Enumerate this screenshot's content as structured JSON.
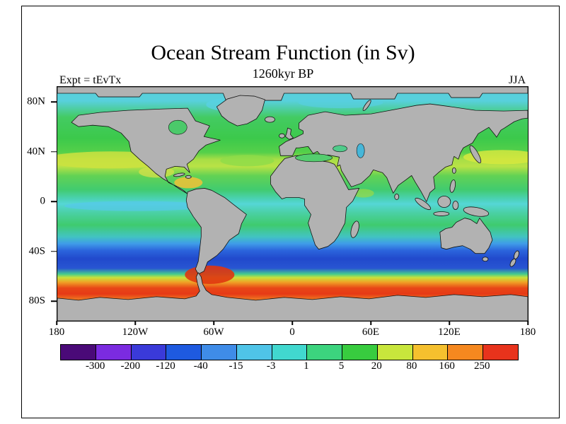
{
  "header": {
    "title": "Ocean Stream Function (in Sv)",
    "subtitle": "1260kyr BP",
    "left_annotation": "Expt = tEvTx",
    "right_annotation": "JJA"
  },
  "chart_data": {
    "type": "heatmap",
    "title": "Ocean Stream Function (in Sv)",
    "subtitle": "1260kyr BP",
    "experiment_label": "Expt = tEvTx",
    "season_label": "JJA",
    "units": "Sv",
    "projection": "global cylindrical lat-lon map, land masked gray",
    "x_ticks": [
      "180",
      "120W",
      "60W",
      "0",
      "60E",
      "120E",
      "180"
    ],
    "y_ticks": [
      "80N",
      "40N",
      "0",
      "40S",
      "80S"
    ],
    "land_color": "#b2b2b2",
    "colorbar": {
      "levels": [
        -300,
        -200,
        -120,
        -40,
        -15,
        -3,
        1,
        5,
        20,
        80,
        160,
        250
      ],
      "labels": [
        "-300",
        "-200",
        "-120",
        "-40",
        "-15",
        "-3",
        "1",
        "5",
        "20",
        "80",
        "160",
        "250"
      ],
      "colors": [
        "#4a0a78",
        "#7b2be0",
        "#3a3ad9",
        "#1e5ae0",
        "#3f8ce8",
        "#4fc4e8",
        "#41d8cf",
        "#3cd47e",
        "#38cc3f",
        "#c8e63c",
        "#f5c02e",
        "#f5881f",
        "#e8331c"
      ],
      "orientation": "horizontal"
    },
    "zonal_mean_bands_estimated_sv": [
      {
        "lat_band": "90N-82N",
        "value": "gray (land/ice mask)"
      },
      {
        "lat_band": "82N-60N",
        "value": "-3 to 5 (cyan/green)"
      },
      {
        "lat_band": "60N-40N",
        "value": "5 to 20 (green)"
      },
      {
        "lat_band": "40N-28N",
        "value": "20 to 80 (yellow, strongest in N Pacific subtropical gyre)"
      },
      {
        "lat_band": "28N-10N",
        "value": "5 to 20 (green)"
      },
      {
        "lat_band": "10N-5S",
        "value": "-3 to 1 (cyan equatorial band)"
      },
      {
        "lat_band": "5S-22S",
        "value": "1 to 20 (green/teal)"
      },
      {
        "lat_band": "22S-33S",
        "value": "-15 to -3 (light blue)"
      },
      {
        "lat_band": "33S-50S",
        "value": "-120 to -40 (deep blue subtropical gyres)"
      },
      {
        "lat_band": "50S-55S",
        "value": "1 to 80 (rapid transition green to yellow)"
      },
      {
        "lat_band": "55S-60S",
        "value": "80 to 160 (orange, Antarctic Circumpolar Current)"
      },
      {
        "lat_band": "60S-68S",
        "value": "160 to >250 (red, ACC core)"
      },
      {
        "lat_band": "68S-90S",
        "value": "gray (Antarctica)"
      }
    ],
    "legend_position": "bottom",
    "grid": "off"
  }
}
